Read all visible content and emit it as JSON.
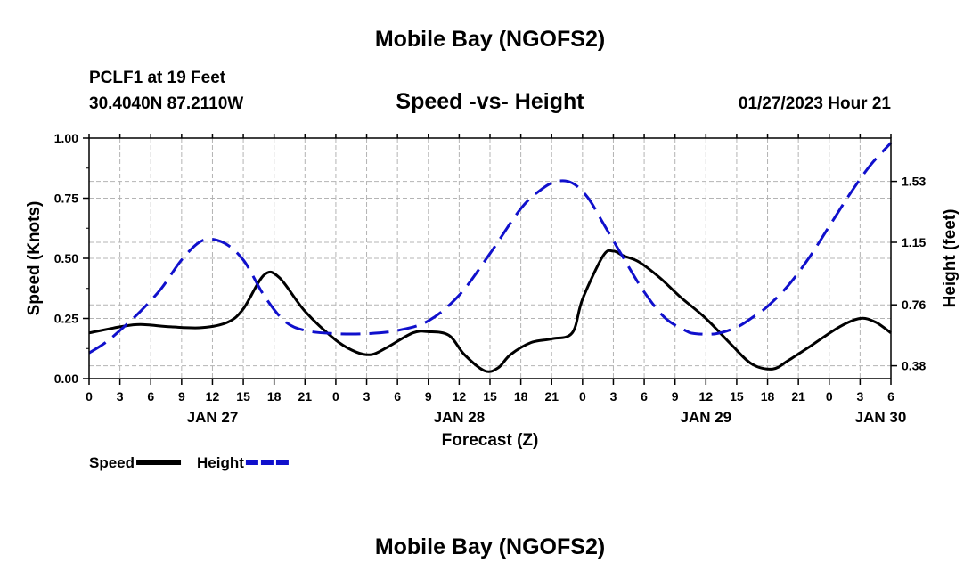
{
  "header": {
    "title": "Mobile Bay (NGOFS2)",
    "station": "PCLF1 at 19 Feet",
    "coords": "30.4040N  87.2110W",
    "subtitle": "Speed -vs- Height",
    "forecast_time": "01/27/2023 Hour 21"
  },
  "footer": {
    "title": "Mobile Bay (NGOFS2)"
  },
  "colors": {
    "speed": "#000000",
    "height": "#1010cc",
    "grid": "#b4b4b4"
  },
  "chart_data": {
    "type": "line",
    "xlabel": "Forecast (Z)",
    "ylabel": "Speed (Knots)",
    "y2label": "Height (feet)",
    "xlim": [
      0,
      78
    ],
    "ylim": [
      0,
      1
    ],
    "y2lim": [
      0.3,
      1.8
    ],
    "x_ticks": [
      0,
      3,
      6,
      9,
      12,
      15,
      18,
      21,
      24,
      27,
      30,
      33,
      36,
      39,
      42,
      45,
      48,
      51,
      54,
      57,
      60,
      63,
      66,
      69,
      72,
      75,
      78
    ],
    "x_tick_labels": [
      "0",
      "3",
      "6",
      "9",
      "12",
      "15",
      "18",
      "21",
      "0",
      "3",
      "6",
      "9",
      "12",
      "15",
      "18",
      "21",
      "0",
      "3",
      "6",
      "9",
      "12",
      "15",
      "18",
      "21",
      "0",
      "3",
      "6"
    ],
    "date_labels": [
      {
        "x": 12,
        "label": "JAN 27"
      },
      {
        "x": 36,
        "label": "JAN 28"
      },
      {
        "x": 60,
        "label": "JAN 29"
      },
      {
        "x": 77,
        "label": "JAN 30"
      }
    ],
    "y_ticks": [
      0,
      0.25,
      0.5,
      0.75,
      1.0
    ],
    "y_tick_labels": [
      "0.00",
      "0.25",
      "0.50",
      "0.75",
      "1.00"
    ],
    "y2_ticks": [
      0.38,
      0.76,
      1.15,
      1.53
    ],
    "y2_tick_labels": [
      "0.38",
      "0.76",
      "1.15",
      "1.53"
    ],
    "series": [
      {
        "name": "Speed",
        "axis": "left",
        "style": "solid",
        "x": [
          0,
          3,
          5,
          8,
          11,
          13.5,
          15,
          17,
          18.5,
          21,
          24,
          26,
          27.5,
          29,
          31.5,
          33,
          35,
          36.5,
          38.5,
          39.8,
          41,
          43,
          45,
          47,
          48,
          50,
          51,
          52,
          53.5,
          55.5,
          57.5,
          60,
          62.5,
          64.5,
          66.5,
          68,
          70,
          73,
          75,
          76.5,
          78
        ],
        "values": [
          0.19,
          0.215,
          0.225,
          0.215,
          0.212,
          0.235,
          0.29,
          0.43,
          0.42,
          0.28,
          0.16,
          0.11,
          0.1,
          0.13,
          0.19,
          0.195,
          0.18,
          0.1,
          0.032,
          0.045,
          0.1,
          0.15,
          0.165,
          0.19,
          0.33,
          0.51,
          0.53,
          0.51,
          0.485,
          0.42,
          0.34,
          0.25,
          0.14,
          0.06,
          0.04,
          0.075,
          0.13,
          0.215,
          0.25,
          0.235,
          0.19
        ]
      },
      {
        "name": "Height",
        "axis": "right",
        "style": "dashed",
        "x": [
          0,
          1.5,
          3,
          5,
          7,
          9,
          11,
          13,
          15,
          17,
          19,
          21,
          24,
          27,
          30,
          33,
          36,
          39,
          42,
          44,
          45.5,
          47,
          48.5,
          50,
          52,
          54,
          56,
          58,
          59,
          61,
          63,
          64.5,
          66,
          68,
          70,
          72,
          74,
          76,
          78
        ],
        "values": [
          0.46,
          0.52,
          0.6,
          0.72,
          0.86,
          1.04,
          1.16,
          1.15,
          1.04,
          0.82,
          0.66,
          0.6,
          0.58,
          0.58,
          0.6,
          0.66,
          0.82,
          1.08,
          1.36,
          1.48,
          1.53,
          1.52,
          1.43,
          1.27,
          1.05,
          0.84,
          0.68,
          0.6,
          0.58,
          0.58,
          0.62,
          0.68,
          0.75,
          0.88,
          1.05,
          1.25,
          1.45,
          1.63,
          1.77
        ]
      }
    ],
    "legend": [
      {
        "name": "Speed",
        "style": "solid"
      },
      {
        "name": "Height",
        "style": "dashed"
      }
    ],
    "grid": true
  }
}
